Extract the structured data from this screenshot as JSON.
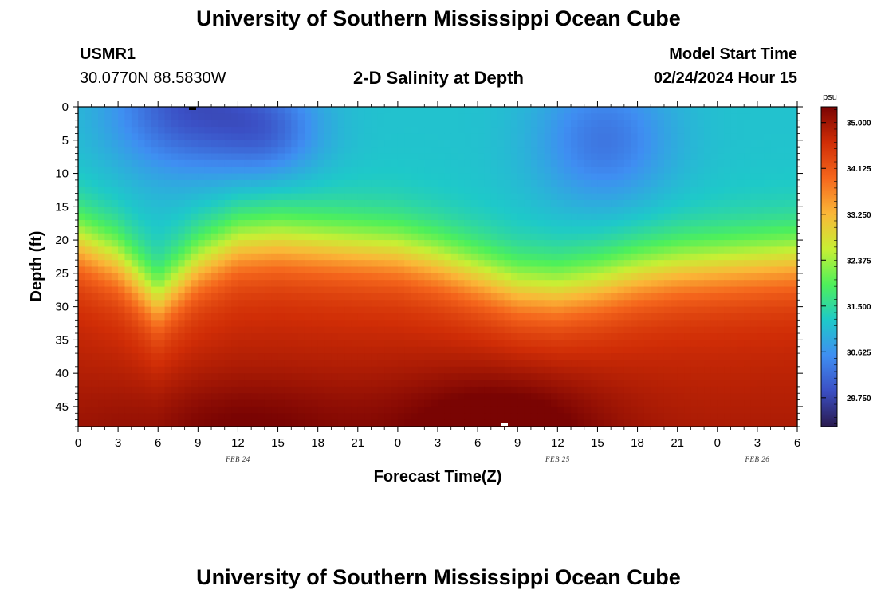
{
  "header": {
    "title": "University of Southern Mississippi Ocean Cube",
    "station_id": "USMR1",
    "station_coords": "30.0770N  88.5830W",
    "plot_title": "2-D Salinity at Depth",
    "model_start_label": "Model Start Time",
    "model_start_value": "02/24/2024 Hour 15"
  },
  "footer": {
    "title": "University of Southern Mississippi Ocean Cube"
  },
  "chart_data": {
    "type": "heatmap",
    "title": "2-D Salinity at Depth",
    "xlabel": "Forecast Time(Z)",
    "ylabel": "Depth (ft)",
    "x_ticks": [
      "0",
      "3",
      "6",
      "9",
      "12",
      "15",
      "18",
      "21",
      "0",
      "3",
      "6",
      "9",
      "12",
      "15",
      "18",
      "21",
      "0",
      "3",
      "6"
    ],
    "x_range_hours": [
      0,
      54
    ],
    "date_labels": [
      {
        "text": "FEB 24",
        "hour": 12
      },
      {
        "text": "FEB 25",
        "hour": 36
      },
      {
        "text": "FEB 26",
        "hour": 51
      }
    ],
    "y_ticks": [
      0,
      5,
      10,
      15,
      20,
      25,
      30,
      35,
      40,
      45
    ],
    "y_range_ft": [
      0,
      48
    ],
    "colorbar": {
      "unit": "psu",
      "min": 29.2,
      "max": 35.3,
      "ticks": [
        "35.000",
        "34.125",
        "33.250",
        "32.375",
        "31.500",
        "30.625",
        "29.750"
      ],
      "colors": [
        "#2a1a4e",
        "#3b4fc4",
        "#3f8ef2",
        "#1ec9c9",
        "#4ef05a",
        "#c8ef34",
        "#fbb637",
        "#f5661c",
        "#d02d06",
        "#7a0403"
      ]
    },
    "salinity_model": {
      "surface_base": 31.15,
      "deep_base": 34.55,
      "surface_lows": [
        {
          "hour": 8.5,
          "depth": 0,
          "min": 29.9,
          "width_h": 6,
          "depth_ft": 10
        },
        {
          "hour": 14.5,
          "depth": 4,
          "min": 30.4,
          "width_h": 4,
          "depth_ft": 7
        },
        {
          "hour": 39.5,
          "depth": 5,
          "min": 30.3,
          "width_h": 5,
          "depth_ft": 10
        }
      ],
      "deep_highs": [
        {
          "hour": 32,
          "depth": 48,
          "max": 35.25,
          "width_h": 8,
          "depth_ft": 9
        },
        {
          "hour": 12,
          "depth": 48,
          "max": 34.95,
          "width_h": 10,
          "depth_ft": 8
        }
      ],
      "halocline_depth_points": [
        {
          "hour": 0,
          "depth": 20
        },
        {
          "hour": 3,
          "depth": 23
        },
        {
          "hour": 6,
          "depth": 29
        },
        {
          "hour": 9,
          "depth": 23.5
        },
        {
          "hour": 12,
          "depth": 20.5
        },
        {
          "hour": 15,
          "depth": 20
        },
        {
          "hour": 18,
          "depth": 20.5
        },
        {
          "hour": 21,
          "depth": 21
        },
        {
          "hour": 24,
          "depth": 21.5
        },
        {
          "hour": 27,
          "depth": 23
        },
        {
          "hour": 30,
          "depth": 25
        },
        {
          "hour": 33,
          "depth": 27
        },
        {
          "hour": 36,
          "depth": 27.5
        },
        {
          "hour": 39,
          "depth": 26.5
        },
        {
          "hour": 42,
          "depth": 25
        },
        {
          "hour": 45,
          "depth": 24
        },
        {
          "hour": 48,
          "depth": 23.5
        },
        {
          "hour": 51,
          "depth": 23
        },
        {
          "hour": 54,
          "depth": 22.5
        }
      ]
    }
  }
}
